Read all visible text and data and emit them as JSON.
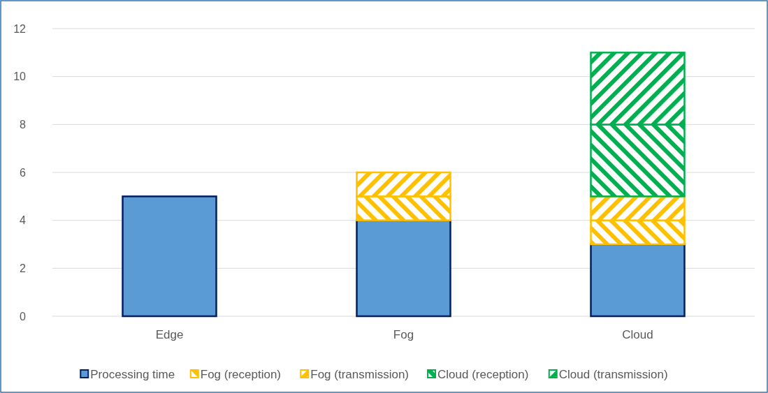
{
  "chart_data": {
    "type": "bar",
    "stacked": true,
    "categories": [
      "Edge",
      "Fog",
      "Cloud"
    ],
    "series": [
      {
        "name": "Processing time",
        "color": "#5b9bd5",
        "values": [
          5,
          4,
          3
        ]
      },
      {
        "name": "Fog (reception)",
        "color": "#ffc000",
        "values": [
          null,
          1,
          1
        ]
      },
      {
        "name": "Fog (transmission)",
        "color": "#ffc000",
        "values": [
          null,
          1,
          1
        ]
      },
      {
        "name": "Cloud (reception)",
        "color": "#00b050",
        "values": [
          null,
          null,
          3
        ]
      },
      {
        "name": "Cloud (transmission)",
        "color": "#00b050",
        "values": [
          null,
          null,
          3
        ]
      }
    ],
    "ylim": [
      0,
      12
    ],
    "yticks": [
      0,
      2,
      4,
      6,
      8,
      10,
      12
    ],
    "grid": "y",
    "legend": "bottom"
  }
}
